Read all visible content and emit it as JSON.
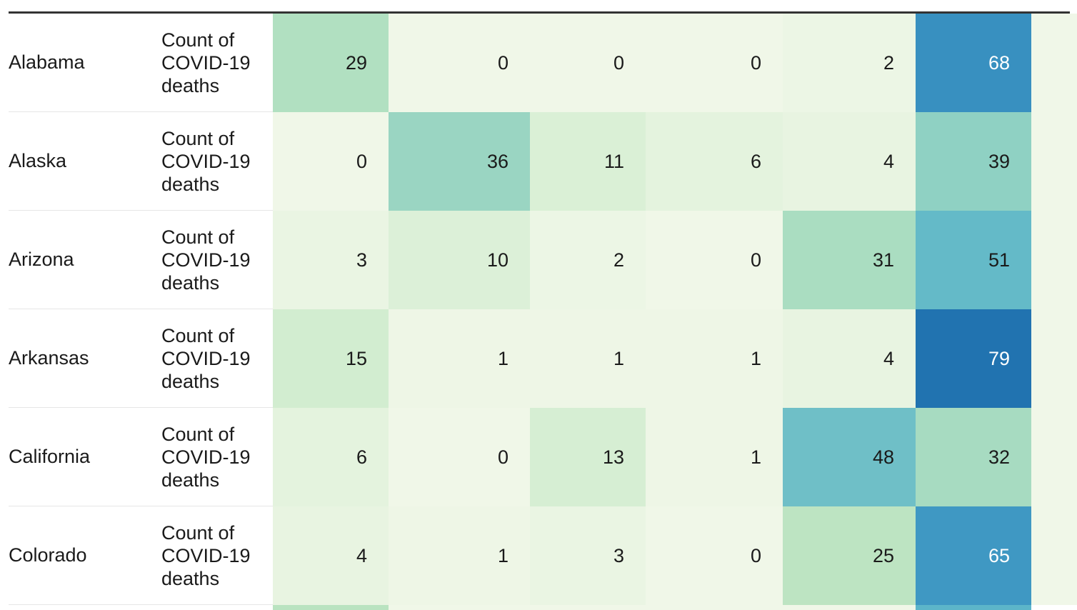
{
  "chart_data": {
    "type": "heatmap",
    "row_header": "Count of COVID-19 deaths",
    "rows": [
      {
        "state": "Alabama",
        "measure": "Count of COVID-19 deaths",
        "values": [
          29,
          0,
          0,
          0,
          2,
          68
        ]
      },
      {
        "state": "Alaska",
        "measure": "Count of COVID-19 deaths",
        "values": [
          0,
          36,
          11,
          6,
          4,
          39
        ]
      },
      {
        "state": "Arizona",
        "measure": "Count of COVID-19 deaths",
        "values": [
          3,
          10,
          2,
          0,
          31,
          51
        ]
      },
      {
        "state": "Arkansas",
        "measure": "Count of COVID-19 deaths",
        "values": [
          15,
          1,
          1,
          1,
          4,
          79
        ]
      },
      {
        "state": "California",
        "measure": "Count of COVID-19 deaths",
        "values": [
          6,
          0,
          13,
          1,
          48,
          32
        ]
      },
      {
        "state": "Colorado",
        "measure": "Count of COVID-19 deaths",
        "values": [
          4,
          1,
          3,
          0,
          25,
          65
        ]
      }
    ],
    "color_scale": {
      "domain": [
        0,
        80
      ],
      "low_color": "#f0f7e8",
      "high_color": "#1f70ae",
      "stops": [
        "#f0f7e8",
        "#d5eed2",
        "#b9e3c0",
        "#8ccfc3",
        "#5cb5c9",
        "#3b94c2",
        "#1f70ae"
      ]
    },
    "text_color_light": "#ffffff",
    "text_color_dark": "#1a1a1a"
  }
}
